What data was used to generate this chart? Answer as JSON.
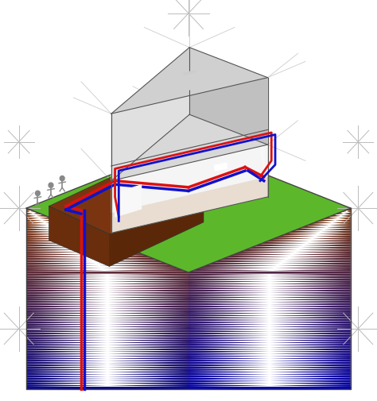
{
  "fig_width": 4.74,
  "fig_height": 5.06,
  "dpi": 100,
  "background_color": "#ffffff",
  "ground": {
    "top_color": "#5cb82a",
    "left_top_color": "#8b4010",
    "left_bottom_color": "#0a0a88",
    "right_top_color": "#7a3a0e",
    "right_bottom_color": "#0505aa"
  },
  "excavation": {
    "top_color": "#7a3510",
    "left_color": "#6a2e0c",
    "right_color": "#5a2808"
  },
  "house": {
    "wall_white": "#f5f5f5",
    "wall_light": "#e8e8e8",
    "wall_mid": "#d5d5d5",
    "wall_dark": "#bbbbbb",
    "roof_light": "#d0d0d0",
    "roof_dark": "#aaaaaa",
    "outline": "#888888",
    "construction_line": "#cccccc",
    "wire_line": "#555555"
  },
  "pipes": {
    "red": "#dd1111",
    "blue": "#1111cc",
    "lw": 2.5
  },
  "people_color": "#888888",
  "starburst_color": "#bbbbbb"
}
